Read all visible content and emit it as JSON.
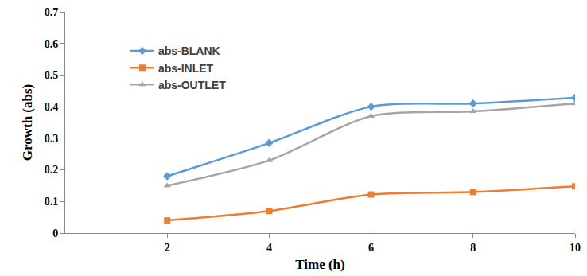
{
  "chart_data": {
    "type": "line",
    "x_label": "Time (h)",
    "y_label": "Growth (abs)",
    "x": [
      2,
      4,
      6,
      8,
      10
    ],
    "series": [
      {
        "name": "abs-BLANK",
        "color": "#5b9bd5",
        "marker": "diamond",
        "values": [
          0.18,
          0.285,
          0.4,
          0.41,
          0.428
        ]
      },
      {
        "name": "abs-INLET",
        "color": "#ed7d31",
        "marker": "square",
        "values": [
          0.04,
          0.07,
          0.122,
          0.13,
          0.148
        ]
      },
      {
        "name": "abs-OUTLET",
        "color": "#a5a5a5",
        "marker": "triangle",
        "values": [
          0.15,
          0.23,
          0.37,
          0.385,
          0.41
        ]
      }
    ],
    "xlim": [
      0,
      10
    ],
    "xticks": [
      2,
      4,
      6,
      8,
      10
    ],
    "ylim": [
      0,
      0.7
    ],
    "yticks": [
      0,
      0.1,
      0.2,
      0.3,
      0.4,
      0.5,
      0.6,
      0.7
    ],
    "grid": false,
    "legend": "upper left"
  }
}
